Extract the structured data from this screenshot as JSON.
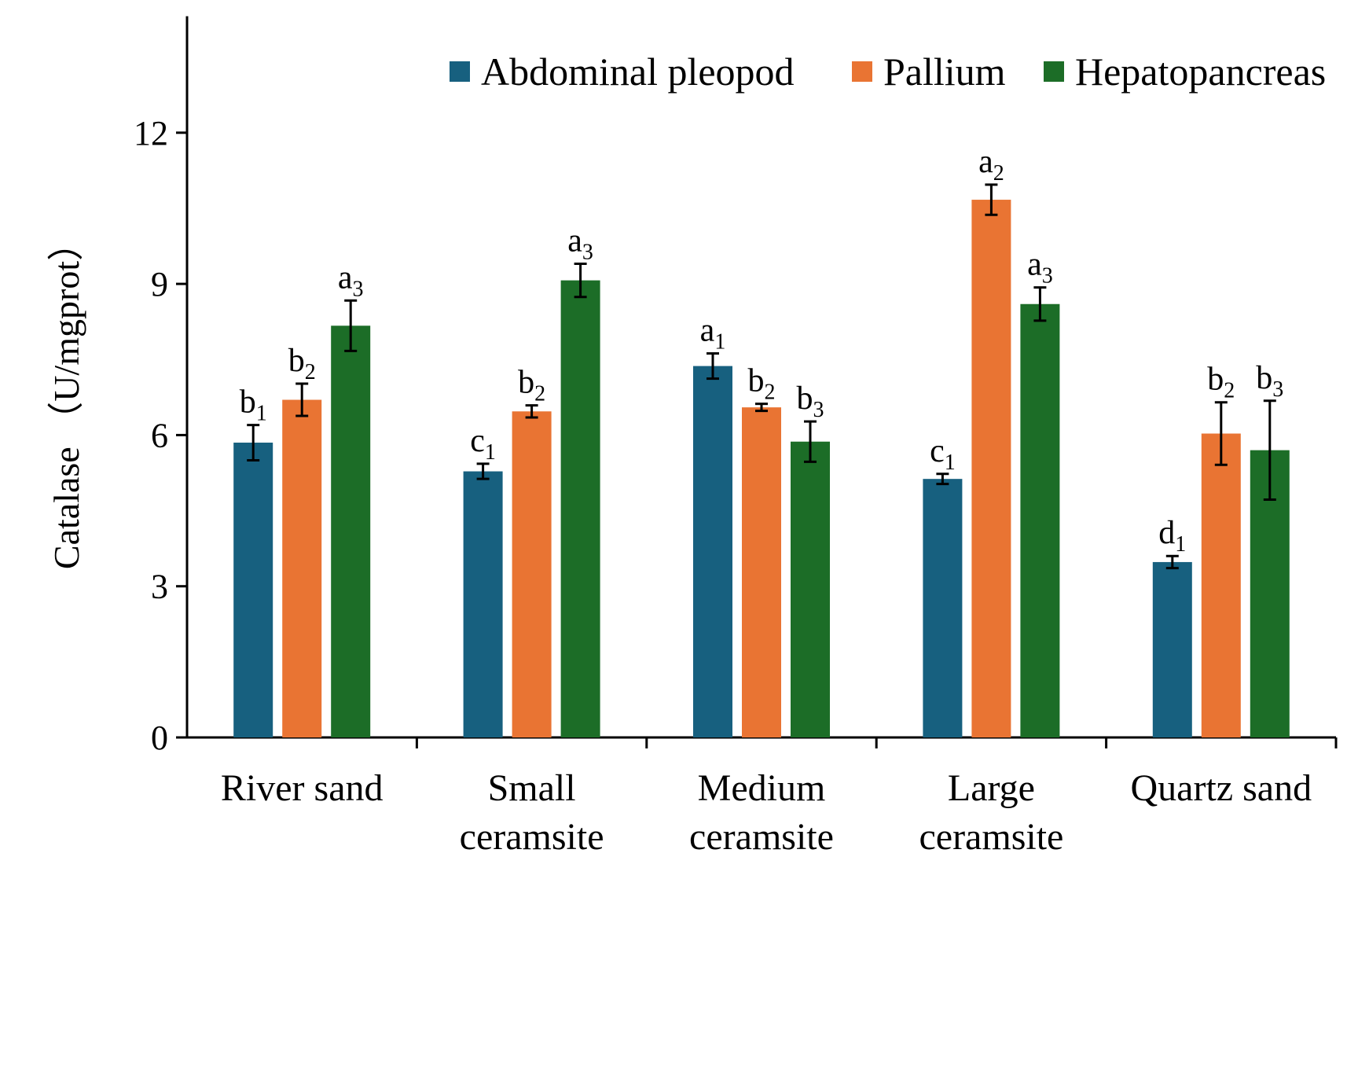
{
  "chart_data": {
    "type": "bar",
    "title": "",
    "xlabel": "",
    "ylabel": "Catalase （U/mgprot）",
    "ylim": [
      0,
      14
    ],
    "yticks": [
      0,
      3,
      6,
      9,
      12
    ],
    "grid": false,
    "legend_position": "top-right",
    "categories": [
      [
        "River sand"
      ],
      [
        "Small",
        "ceramsite"
      ],
      [
        "Medium",
        "ceramsite"
      ],
      [
        "Large",
        "ceramsite"
      ],
      [
        "Quartz sand"
      ]
    ],
    "series": [
      {
        "name": "Abdominal pleopod",
        "color": "#17607f",
        "values": [
          5.85,
          5.28,
          7.37,
          5.13,
          3.48
        ],
        "errors": [
          0.35,
          0.15,
          0.25,
          0.1,
          0.12
        ],
        "labels": [
          [
            "b",
            "1"
          ],
          [
            "c",
            "1"
          ],
          [
            "a",
            "1"
          ],
          [
            "c",
            "1"
          ],
          [
            "d",
            "1"
          ]
        ]
      },
      {
        "name": "Pallium",
        "color": "#e97433",
        "values": [
          6.7,
          6.47,
          6.55,
          10.67,
          6.03
        ],
        "errors": [
          0.32,
          0.12,
          0.07,
          0.3,
          0.62
        ],
        "labels": [
          [
            "b",
            "2"
          ],
          [
            "b",
            "2"
          ],
          [
            "b",
            "2"
          ],
          [
            "a",
            "2"
          ],
          [
            "b",
            "2"
          ]
        ]
      },
      {
        "name": "Hepatopancreas",
        "color": "#1c6d27",
        "values": [
          8.17,
          9.07,
          5.87,
          8.6,
          5.7
        ],
        "errors": [
          0.5,
          0.33,
          0.4,
          0.33,
          0.98
        ],
        "labels": [
          [
            "a",
            "3"
          ],
          [
            "a",
            "3"
          ],
          [
            "b",
            "3"
          ],
          [
            "a",
            "3"
          ],
          [
            "b",
            "3"
          ]
        ]
      }
    ]
  }
}
